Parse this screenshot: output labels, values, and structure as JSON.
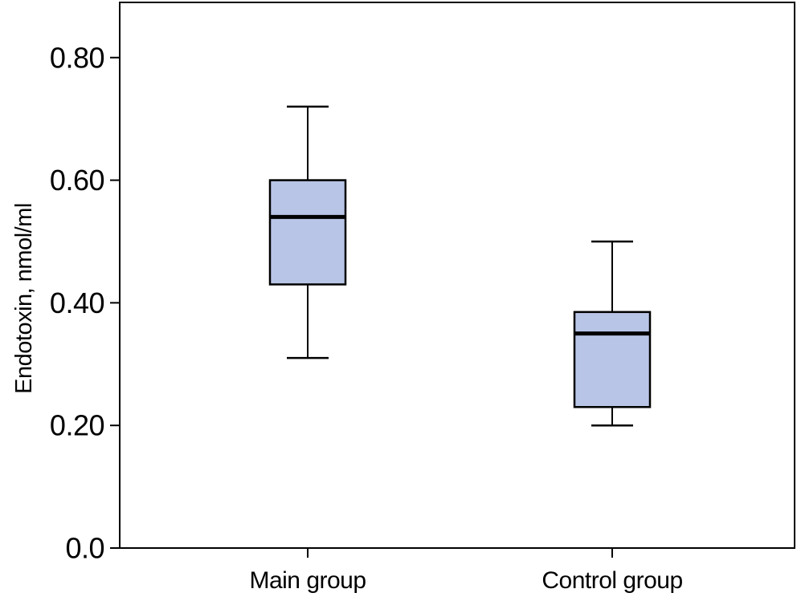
{
  "chart_data": {
    "type": "boxplot",
    "title": "",
    "xlabel": "",
    "ylabel": "Endotoxin, nmol/ml",
    "categories": [
      "Main group",
      "Control group"
    ],
    "series": [
      {
        "name": "Main group",
        "whisker_low": 0.31,
        "q1": 0.43,
        "median": 0.54,
        "q3": 0.6,
        "whisker_high": 0.72
      },
      {
        "name": "Control group",
        "whisker_low": 0.2,
        "q1": 0.23,
        "median": 0.35,
        "q3": 0.385,
        "whisker_high": 0.5
      }
    ],
    "y_ticks": [
      {
        "value": 0.0,
        "label": "0.0"
      },
      {
        "value": 0.2,
        "label": "0.20"
      },
      {
        "value": 0.4,
        "label": "0.40"
      },
      {
        "value": 0.6,
        "label": "0.60"
      },
      {
        "value": 0.8,
        "label": "0.80"
      }
    ],
    "ylim": [
      0,
      0.89
    ],
    "grid": false,
    "legend": "none",
    "colors": {
      "box_fill": "#b8c5e6",
      "line": "#000000",
      "background": "#ffffff"
    }
  }
}
